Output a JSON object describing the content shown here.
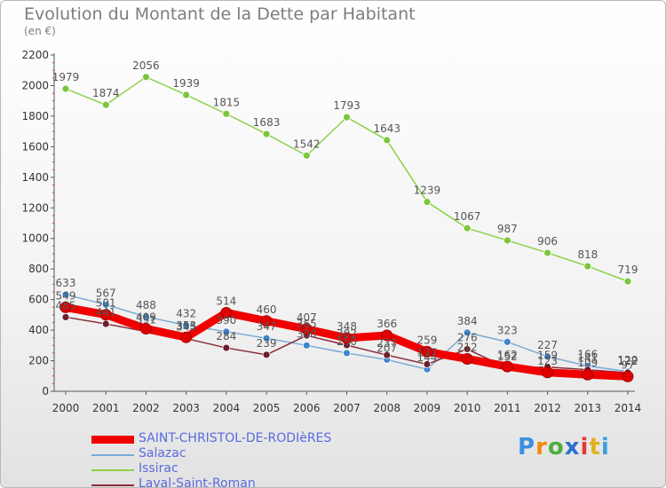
{
  "title": "Evolution du Montant de la Dette par Habitant",
  "subtitle": "(en €)",
  "logo": {
    "letters": [
      "P",
      "r",
      "o",
      "x",
      "i",
      "t",
      "i"
    ],
    "colors": [
      "#3a8fe0",
      "#f08a10",
      "#4cae3c",
      "#2a6fd0",
      "#e03a3a",
      "#e0b020",
      "#3aa0e0"
    ]
  },
  "chart_data": {
    "type": "line",
    "title": "Evolution du Montant de la Dette par Habitant",
    "ylabel": "(en €)",
    "xlabel": "",
    "ylim": [
      0,
      2200
    ],
    "yticks": [
      0,
      200,
      400,
      600,
      800,
      1000,
      1200,
      1400,
      1600,
      1800,
      2000,
      2200
    ],
    "x": [
      "2000",
      "2001",
      "2002",
      "2003",
      "2004",
      "2005",
      "2006",
      "2007",
      "2008",
      "2009",
      "2010",
      "2011",
      "2012",
      "2013",
      "2014"
    ],
    "grid": false,
    "series": [
      {
        "name": "Issirac",
        "color": "#8cd14a",
        "marker": "#7cc63b",
        "thick": false,
        "values": [
          1979,
          1874,
          2056,
          1939,
          1815,
          1683,
          1542,
          1793,
          1643,
          1239,
          1067,
          987,
          906,
          818,
          719
        ]
      },
      {
        "name": "Salazac",
        "color": "#7aaad8",
        "marker": "#3f86cf",
        "thick": false,
        "values": [
          633,
          567,
          488,
          432,
          390,
          347,
          300,
          250,
          207,
          144,
          384,
          323,
          227,
          166,
          129
        ]
      },
      {
        "name": "Laval-Saint-Roman",
        "color": "#8a2d3a",
        "marker": "#6a1f2c",
        "thick": false,
        "values": [
          485,
          441,
          391,
          345,
          284,
          239,
          365,
          302,
          237,
          177,
          276,
          152,
          159,
          141,
          122
        ]
      },
      {
        "name": "SAINT-CHRISTOL-DE-RODIèRES",
        "color": "#f00000",
        "marker": "#e00000",
        "thick": true,
        "values": [
          549,
          501,
          409,
          353,
          514,
          460,
          407,
          348,
          366,
          259,
          212,
          162,
          123,
          109,
          97
        ]
      }
    ]
  }
}
